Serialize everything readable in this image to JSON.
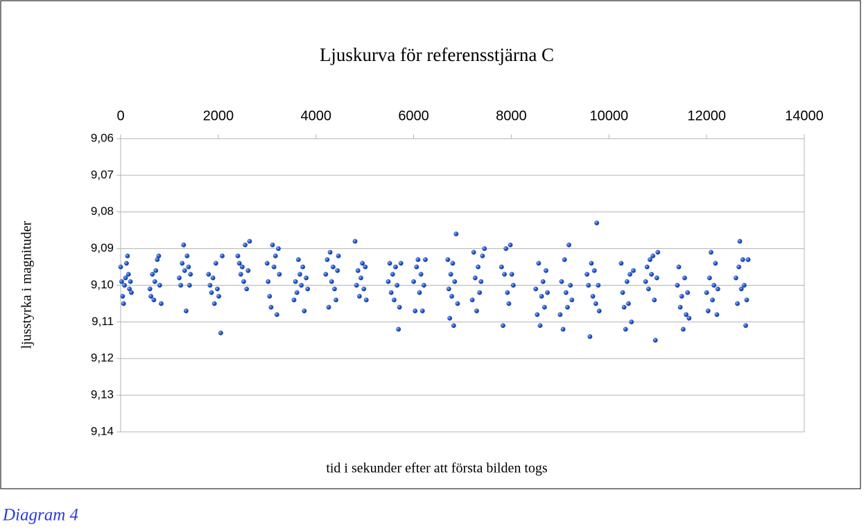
{
  "chart_data": {
    "type": "scatter",
    "title": "Ljuskurva för referensstjärna C",
    "xlabel": "tid i sekunder efter att första bilden togs",
    "ylabel": "ljusstyrka i magnituder",
    "caption": "Diagram 4",
    "color": "#2a5ccc",
    "x_axis_position": "top",
    "y_inverted": true,
    "grid": true,
    "xlim": [
      0,
      14000
    ],
    "xticks": [
      0,
      2000,
      4000,
      6000,
      8000,
      10000,
      12000,
      14000
    ],
    "ylim": [
      9.06,
      9.14
    ],
    "yticks": [
      {
        "value": 9.06,
        "label": "9,06"
      },
      {
        "value": 9.07,
        "label": "9,07"
      },
      {
        "value": 9.08,
        "label": "9,08"
      },
      {
        "value": 9.09,
        "label": "9,09"
      },
      {
        "value": 9.1,
        "label": "9,10"
      },
      {
        "value": 9.11,
        "label": "9,11"
      },
      {
        "value": 9.12,
        "label": "9,12"
      },
      {
        "value": 9.13,
        "label": "9,13"
      },
      {
        "value": 9.14,
        "label": "9,14"
      }
    ],
    "x": [
      0,
      20,
      40,
      60,
      80,
      100,
      120,
      140,
      160,
      180,
      200,
      220,
      600,
      620,
      650,
      680,
      700,
      720,
      750,
      780,
      800,
      830,
      1200,
      1230,
      1260,
      1290,
      1310,
      1340,
      1360,
      1390,
      1410,
      1430,
      1800,
      1830,
      1860,
      1890,
      1920,
      1950,
      1980,
      2010,
      2050,
      2080,
      2400,
      2430,
      2460,
      2490,
      2520,
      2550,
      2580,
      2610,
      2640,
      3000,
      3020,
      3050,
      3080,
      3110,
      3140,
      3170,
      3200,
      3230,
      3250,
      3550,
      3580,
      3610,
      3640,
      3670,
      3700,
      3730,
      3760,
      3800,
      3830,
      4200,
      4230,
      4260,
      4290,
      4320,
      4350,
      4380,
      4410,
      4440,
      4460,
      4800,
      4830,
      4860,
      4890,
      4920,
      4950,
      4980,
      5010,
      5030,
      5480,
      5510,
      5540,
      5570,
      5600,
      5630,
      5660,
      5690,
      5710,
      5740,
      6000,
      6030,
      6060,
      6090,
      6120,
      6150,
      6180,
      6210,
      6240,
      6700,
      6720,
      6740,
      6760,
      6780,
      6800,
      6820,
      6840,
      6870,
      6900,
      7200,
      7230,
      7260,
      7290,
      7320,
      7350,
      7380,
      7410,
      7450,
      7800,
      7830,
      7860,
      7890,
      7920,
      7950,
      7980,
      8010,
      8040,
      8500,
      8530,
      8560,
      8590,
      8620,
      8650,
      8680,
      8710,
      8740,
      9000,
      9030,
      9060,
      9090,
      9120,
      9150,
      9180,
      9210,
      9240,
      9550,
      9580,
      9610,
      9640,
      9670,
      9700,
      9730,
      9750,
      9780,
      9800,
      10250,
      10280,
      10310,
      10340,
      10370,
      10400,
      10430,
      10460,
      10500,
      10750,
      10780,
      10810,
      10840,
      10870,
      10900,
      10930,
      10950,
      10980,
      11000,
      11400,
      11430,
      11460,
      11490,
      11520,
      11550,
      11580,
      11610,
      11640,
      12000,
      12030,
      12060,
      12090,
      12120,
      12150,
      12180,
      12210,
      12230,
      12600,
      12630,
      12660,
      12680,
      12710,
      12740,
      12770,
      12800,
      12820,
      12850
    ],
    "values": [
      9.095,
      9.099,
      9.103,
      9.105,
      9.1,
      9.098,
      9.094,
      9.092,
      9.097,
      9.101,
      9.099,
      9.102,
      9.101,
      9.103,
      9.097,
      9.104,
      9.099,
      9.096,
      9.093,
      9.092,
      9.1,
      9.105,
      9.098,
      9.1,
      9.094,
      9.089,
      9.096,
      9.107,
      9.092,
      9.095,
      9.1,
      9.097,
      9.097,
      9.1,
      9.102,
      9.098,
      9.105,
      9.094,
      9.101,
      9.103,
      9.113,
      9.092,
      9.092,
      9.094,
      9.097,
      9.095,
      9.099,
      9.089,
      9.101,
      9.096,
      9.088,
      9.094,
      9.099,
      9.103,
      9.106,
      9.089,
      9.095,
      9.092,
      9.108,
      9.09,
      9.097,
      9.104,
      9.099,
      9.102,
      9.093,
      9.097,
      9.1,
      9.095,
      9.107,
      9.098,
      9.101,
      9.097,
      9.093,
      9.106,
      9.091,
      9.099,
      9.095,
      9.101,
      9.104,
      9.096,
      9.092,
      9.088,
      9.1,
      9.096,
      9.103,
      9.098,
      9.094,
      9.101,
      9.095,
      9.104,
      9.099,
      9.094,
      9.102,
      9.097,
      9.104,
      9.095,
      9.1,
      9.112,
      9.106,
      9.094,
      9.099,
      9.107,
      9.095,
      9.093,
      9.102,
      9.097,
      9.107,
      9.1,
      9.093,
      9.093,
      9.101,
      9.109,
      9.097,
      9.103,
      9.094,
      9.111,
      9.099,
      9.086,
      9.105,
      9.104,
      9.091,
      9.098,
      9.107,
      9.095,
      9.102,
      9.099,
      9.092,
      9.09,
      9.095,
      9.111,
      9.097,
      9.09,
      9.102,
      9.105,
      9.089,
      9.097,
      9.1,
      9.101,
      9.108,
      9.094,
      9.111,
      9.103,
      9.099,
      9.106,
      9.096,
      9.102,
      9.108,
      9.099,
      9.112,
      9.093,
      9.102,
      9.106,
      9.089,
      9.1,
      9.104,
      9.097,
      9.1,
      9.114,
      9.094,
      9.103,
      9.096,
      9.105,
      9.083,
      9.1,
      9.107,
      9.094,
      9.102,
      9.106,
      9.112,
      9.099,
      9.105,
      9.097,
      9.11,
      9.096,
      9.099,
      9.095,
      9.101,
      9.093,
      9.097,
      9.092,
      9.104,
      9.115,
      9.098,
      9.091,
      9.1,
      9.095,
      9.106,
      9.103,
      9.112,
      9.098,
      9.108,
      9.102,
      9.109,
      9.102,
      9.107,
      9.098,
      9.091,
      9.104,
      9.1,
      9.094,
      9.108,
      9.101,
      9.098,
      9.105,
      9.095,
      9.088,
      9.101,
      9.093,
      9.1,
      9.111,
      9.104,
      9.093
    ]
  }
}
